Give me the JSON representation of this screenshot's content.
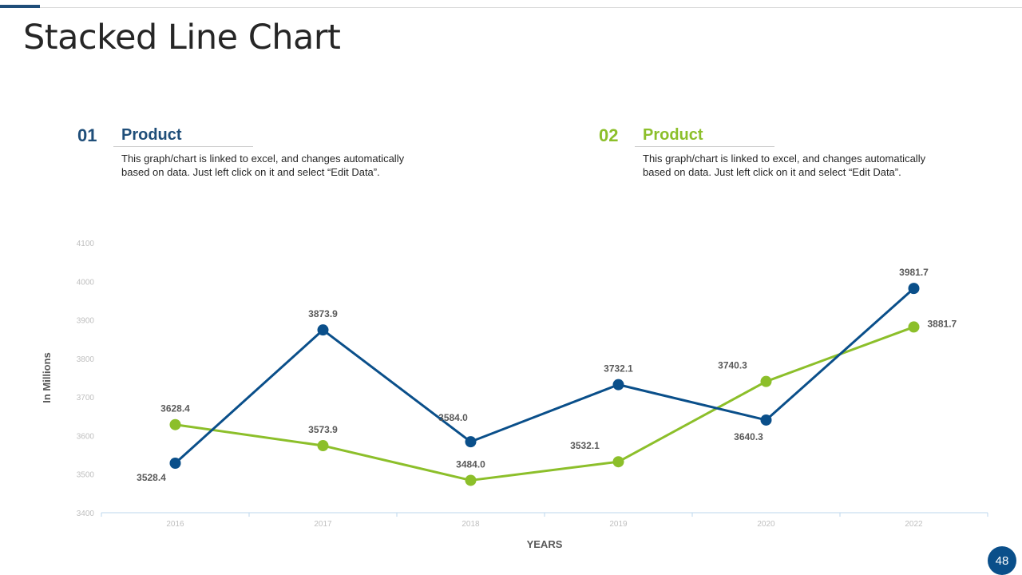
{
  "title": "Stacked Line Chart",
  "page_number": "48",
  "colors": {
    "series1": "#0a4f8a",
    "series2": "#8cbf2a",
    "accent": "#1f4e79"
  },
  "blocks": [
    {
      "number": "01",
      "heading": "Product",
      "text": "This graph/chart is linked to excel,  and changes automatically based on data. Just left click on it and select “Edit Data”."
    },
    {
      "number": "02",
      "heading": "Product",
      "text": "This graph/chart is linked to excel,  and changes automatically based on data. Just left click on it and select “Edit Data”."
    }
  ],
  "chart_data": {
    "type": "line",
    "title": "Stacked Line Chart",
    "xlabel": "YEARS",
    "ylabel": "In Millions",
    "categories": [
      "2016",
      "2017",
      "2018",
      "2019",
      "2020",
      "2022"
    ],
    "ylim": [
      3400,
      4100
    ],
    "yticks": [
      3400,
      3500,
      3600,
      3700,
      3800,
      3900,
      4000,
      4100
    ],
    "grid": false,
    "series": [
      {
        "name": "Product 01",
        "color": "#0a4f8a",
        "values": [
          3528.4,
          3873.9,
          3584.0,
          3732.1,
          3640.3,
          3981.7
        ],
        "labels": [
          "3528.4",
          "3873.9",
          "3584.0",
          "3732.1",
          "3640.3",
          "3981.7"
        ]
      },
      {
        "name": "Product 02",
        "color": "#8cbf2a",
        "values": [
          3628.4,
          3573.9,
          3484.0,
          3532.1,
          3740.3,
          3881.7
        ],
        "labels": [
          "3628.4",
          "3573.9",
          "3484.0",
          "3532.1",
          "3740.3",
          "3881.7"
        ]
      }
    ]
  }
}
